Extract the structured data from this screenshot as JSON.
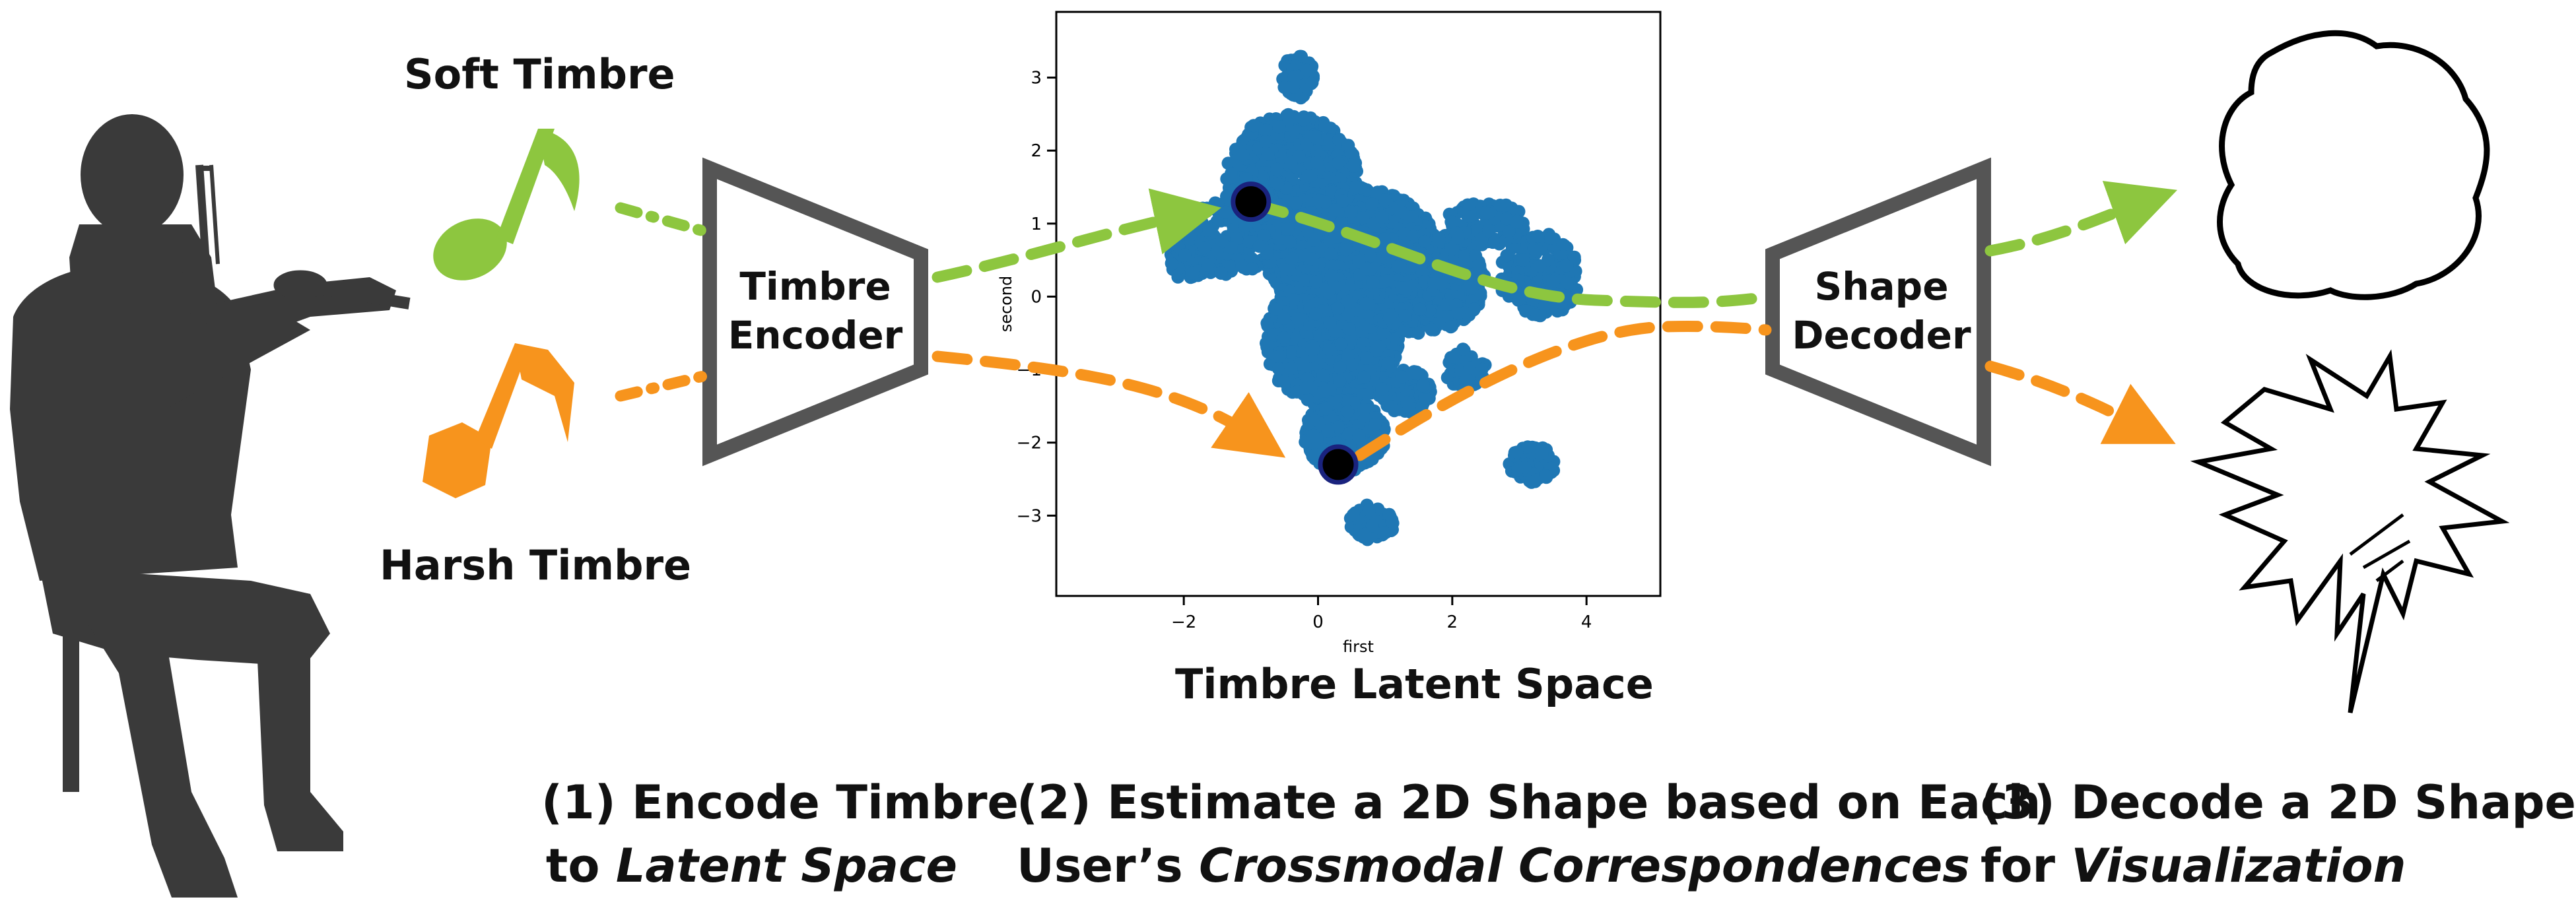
{
  "labels": {
    "soft_timbre": "Soft Timbre",
    "harsh_timbre": "Harsh Timbre",
    "encoder_line1": "Timbre",
    "encoder_line2": "Encoder",
    "decoder_line1": "Shape",
    "decoder_line2": "Decoder",
    "latent_space": "Timbre Latent Space"
  },
  "steps": [
    {
      "line1": "(1) Encode Timbre",
      "line2_plain": "to ",
      "line2_italic": "Latent Space"
    },
    {
      "line1": "(2) Estimate a 2D Shape based on Each",
      "line2_plain": "User’s ",
      "line2_italic": "Crossmodal Correspondences"
    },
    {
      "line1": "(3) Decode a 2D Shape",
      "line2_plain": "for ",
      "line2_italic": "Visualization"
    }
  ],
  "colors": {
    "soft": "#8dc63f",
    "harsh": "#f7941d",
    "scatter": "#1f77b4",
    "box": "#555555",
    "silhouette": "#3a3a3a",
    "marker": "#000000",
    "marker_edge": "#1a237e"
  },
  "icons": {
    "soft": "music-note-icon",
    "harsh": "music-note-icon",
    "player": "violinist-silhouette",
    "soft_shape": "rounded-blob-shape",
    "harsh_shape": "spiky-shape"
  },
  "chart_data": {
    "type": "scatter",
    "xlabel": "first",
    "ylabel": "second",
    "xlim": [
      -3.9,
      5.1
    ],
    "ylim": [
      -4.1,
      3.9
    ],
    "xticks": [
      -2,
      0,
      2,
      4
    ],
    "yticks": [
      -3,
      -2,
      -1,
      0,
      1,
      2,
      3
    ],
    "grid": false,
    "highlight_points": [
      {
        "x": -1.0,
        "y": 1.3
      },
      {
        "x": 0.3,
        "y": -2.3
      }
    ]
  }
}
